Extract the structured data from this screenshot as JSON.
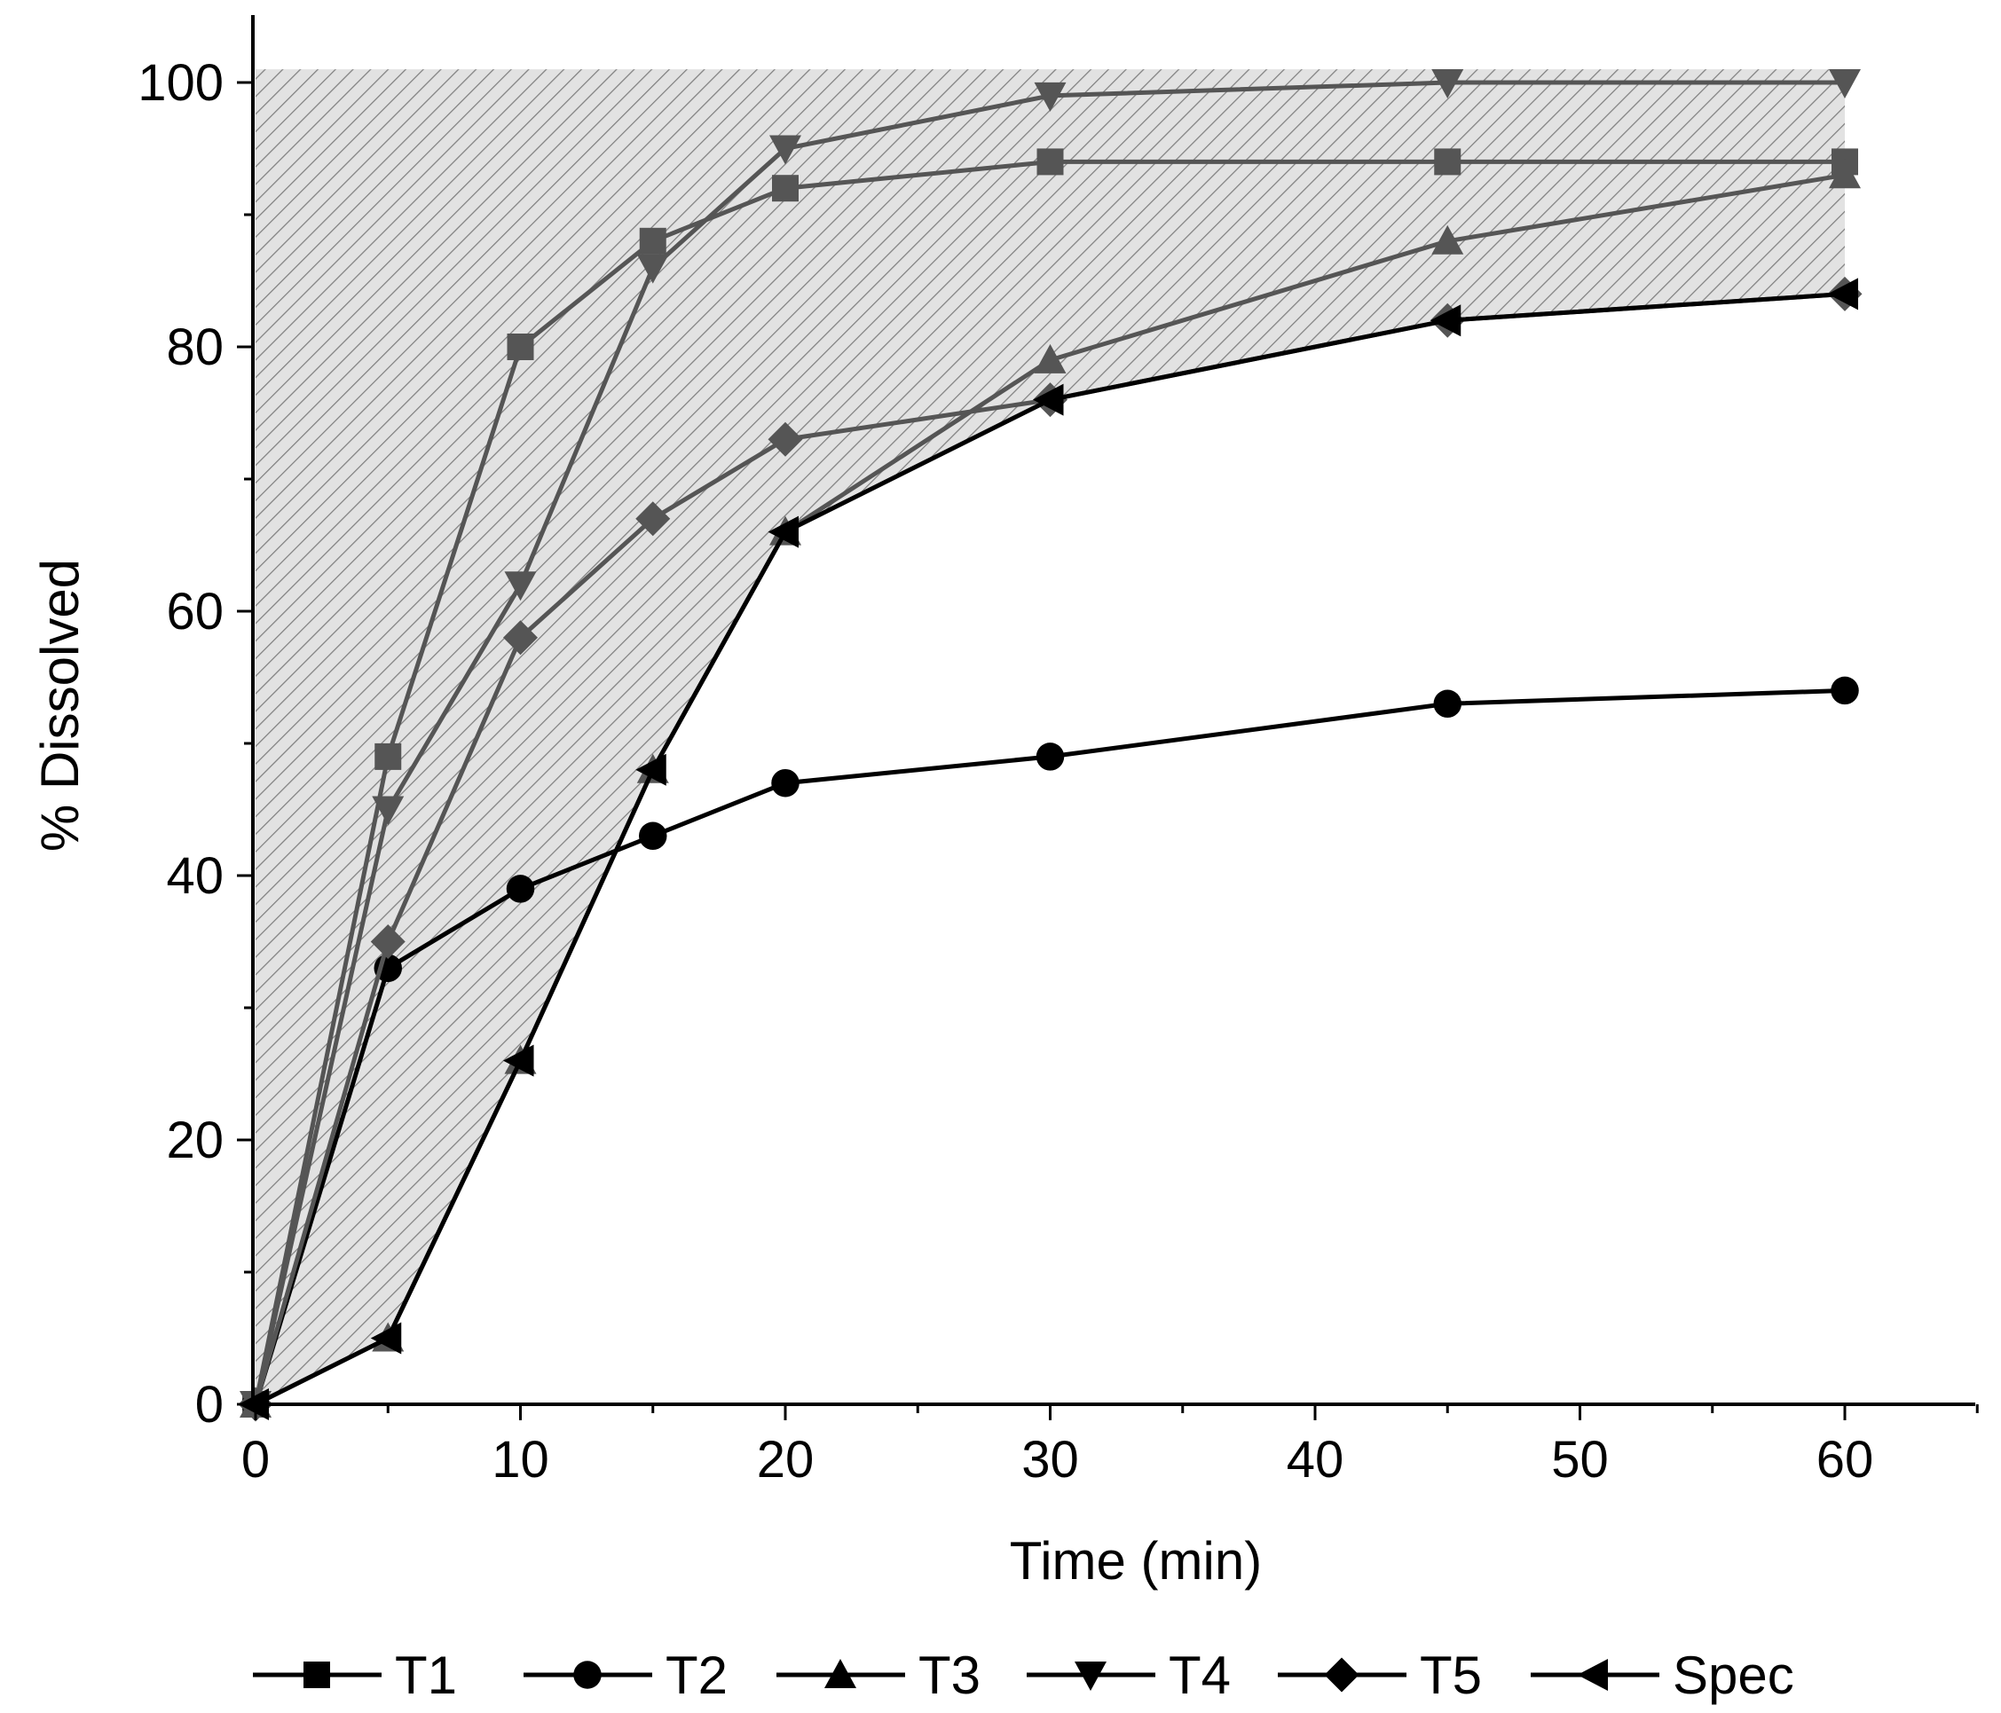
{
  "chart_data": {
    "type": "line",
    "title": "",
    "xlabel": "Time (min)",
    "ylabel": "% Dissolved",
    "xlim": [
      -0.5,
      65
    ],
    "ylim": [
      0,
      105
    ],
    "xticks": [
      0,
      10,
      20,
      30,
      40,
      50,
      60
    ],
    "yticks": [
      0,
      20,
      40,
      60,
      80,
      100
    ],
    "x": [
      0,
      5,
      10,
      15,
      20,
      30,
      45,
      60
    ],
    "series": [
      {
        "name": "T1",
        "marker": "square",
        "color": "#555555",
        "values": [
          0,
          49,
          80,
          88,
          92,
          94,
          94,
          94
        ]
      },
      {
        "name": "T2",
        "marker": "circle",
        "color": "#000000",
        "values": [
          0,
          33,
          39,
          43,
          47,
          49,
          53,
          54
        ]
      },
      {
        "name": "T3",
        "marker": "triangle-up",
        "color": "#555555",
        "values": [
          0,
          5,
          26,
          48,
          66,
          79,
          88,
          93
        ]
      },
      {
        "name": "T4",
        "marker": "triangle-down",
        "color": "#555555",
        "values": [
          0,
          45,
          62,
          86,
          95,
          99,
          100,
          100
        ]
      },
      {
        "name": "T5",
        "marker": "diamond",
        "color": "#555555",
        "values": [
          0,
          35,
          58,
          67,
          73,
          76,
          82,
          84
        ]
      },
      {
        "name": "Spec",
        "marker": "triangle-left",
        "color": "#000000",
        "values": [
          0,
          5,
          26,
          48,
          66,
          76,
          82,
          84
        ]
      }
    ],
    "shaded_band": {
      "lower": "Spec",
      "upper": 101,
      "fill": "#e0e0e0",
      "hatch": "#777777"
    },
    "grid": false,
    "legend_placement": "bottom"
  }
}
